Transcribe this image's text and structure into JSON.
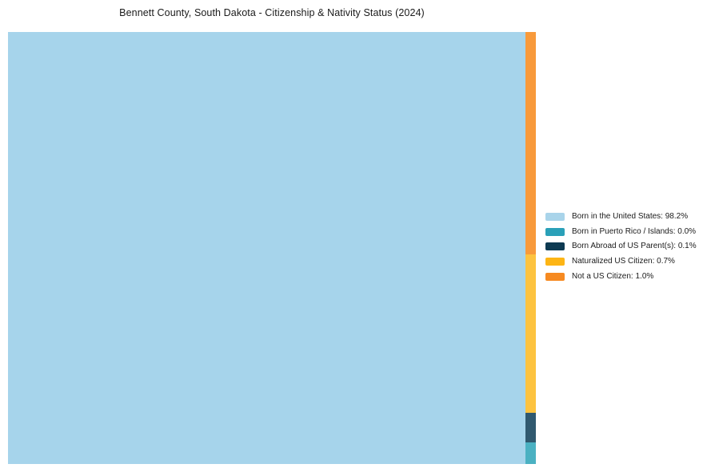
{
  "title": "Bennett County, South Dakota - Citizenship & Nativity Status (2024)",
  "chart_data": {
    "type": "treemap",
    "title": "Bennett County, South Dakota - Citizenship & Nativity Status (2024)",
    "legend_position": "right-center",
    "total_pct": 100,
    "categories": [
      {
        "label": "Born in the United States",
        "pct": 98.2,
        "legend_text": "Born in the United States: 98.2%",
        "color": "#A9D4EA",
        "cell_color": "#A6D4EB"
      },
      {
        "label": "Born in Puerto Rico / Islands",
        "pct": 0.0,
        "legend_text": "Born in Puerto Rico / Islands: 0.0%",
        "color": "#2AA0B8",
        "cell_color": "#4BB1C2"
      },
      {
        "label": "Born Abroad of US Parent(s)",
        "pct": 0.1,
        "legend_text": "Born Abroad of US Parent(s): 0.1%",
        "color": "#0E3A52",
        "cell_color": "#30596F"
      },
      {
        "label": "Naturalized US Citizen",
        "pct": 0.7,
        "legend_text": "Naturalized US Citizen: 0.7%",
        "color": "#FDB515",
        "cell_color": "#FDC340"
      },
      {
        "label": "Not a US Citizen",
        "pct": 1.0,
        "legend_text": "Not a US Citizen: 1.0%",
        "color": "#F68A21",
        "cell_color": "#F89A3B"
      }
    ]
  }
}
